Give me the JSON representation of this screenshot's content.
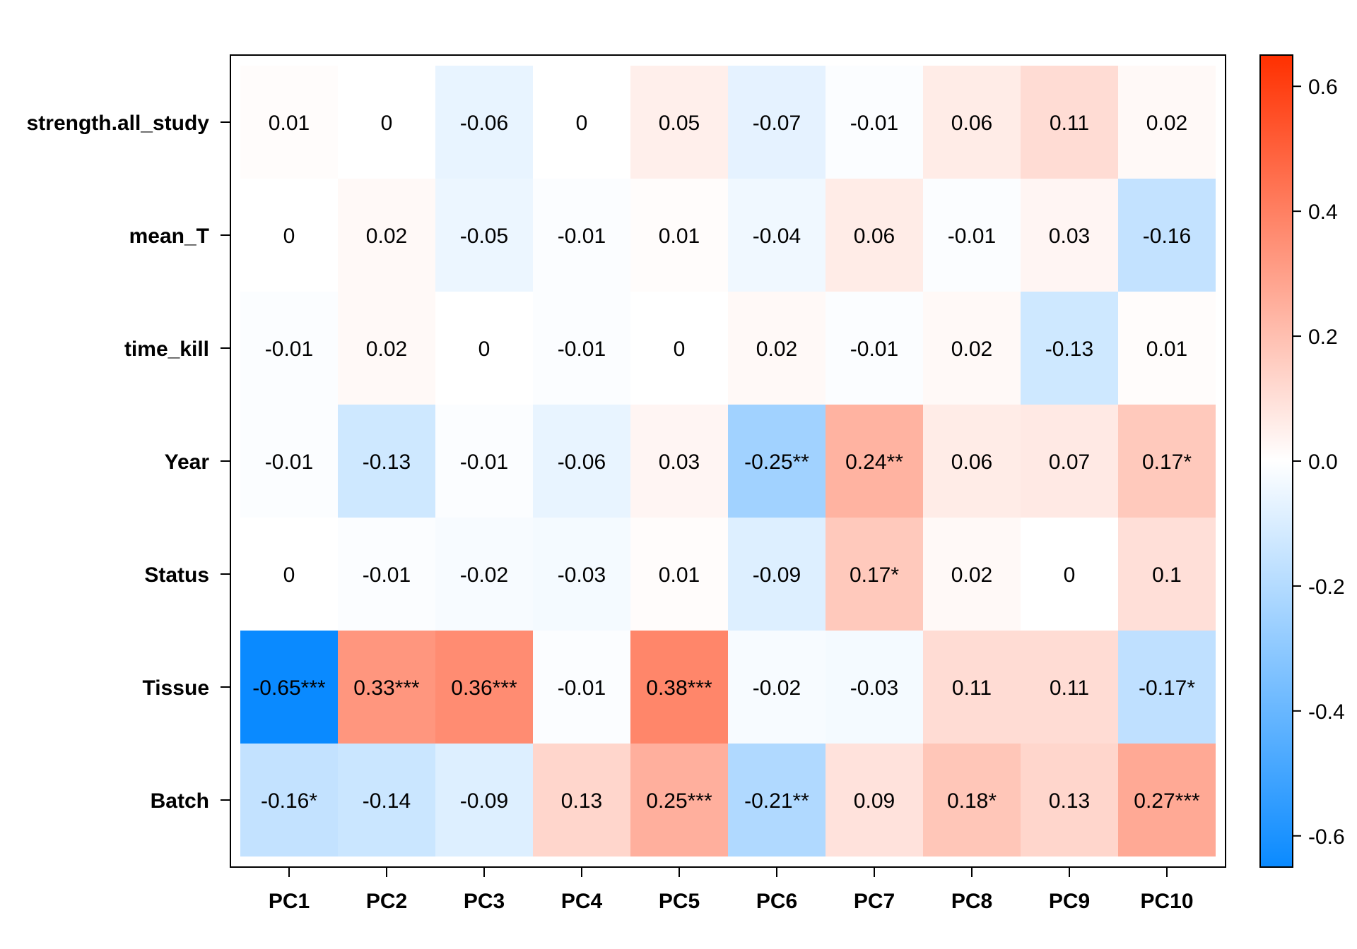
{
  "chart_data": {
    "type": "heatmap",
    "rows": [
      "strength.all_study",
      "mean_T",
      "time_kill",
      "Year",
      "Status",
      "Tissue",
      "Batch"
    ],
    "columns": [
      "PC1",
      "PC2",
      "PC3",
      "PC4",
      "PC5",
      "PC6",
      "PC7",
      "PC8",
      "PC9",
      "PC10"
    ],
    "values": [
      [
        0.01,
        0,
        -0.06,
        0,
        0.05,
        -0.07,
        -0.01,
        0.06,
        0.11,
        0.02
      ],
      [
        0,
        0.02,
        -0.05,
        -0.01,
        0.01,
        -0.04,
        0.06,
        -0.01,
        0.03,
        -0.16
      ],
      [
        -0.01,
        0.02,
        0,
        -0.01,
        0,
        0.02,
        -0.01,
        0.02,
        -0.13,
        0.01
      ],
      [
        -0.01,
        -0.13,
        -0.01,
        -0.06,
        0.03,
        -0.25,
        0.24,
        0.06,
        0.07,
        0.17
      ],
      [
        0,
        -0.01,
        -0.02,
        -0.03,
        0.01,
        -0.09,
        0.17,
        0.02,
        0,
        0.1
      ],
      [
        -0.65,
        0.33,
        0.36,
        -0.01,
        0.38,
        -0.02,
        -0.03,
        0.11,
        0.11,
        -0.17
      ],
      [
        -0.16,
        -0.14,
        -0.09,
        0.13,
        0.25,
        -0.21,
        0.09,
        0.18,
        0.13,
        0.27
      ]
    ],
    "labels": [
      [
        "0.01",
        "0",
        "-0.06",
        "0",
        "0.05",
        "-0.07",
        "-0.01",
        "0.06",
        "0.11",
        "0.02"
      ],
      [
        "0",
        "0.02",
        "-0.05",
        "-0.01",
        "0.01",
        "-0.04",
        "0.06",
        "-0.01",
        "0.03",
        "-0.16"
      ],
      [
        "-0.01",
        "0.02",
        "0",
        "-0.01",
        "0",
        "0.02",
        "-0.01",
        "0.02",
        "-0.13",
        "0.01"
      ],
      [
        "-0.01",
        "-0.13",
        "-0.01",
        "-0.06",
        "0.03",
        "-0.25**",
        "0.24**",
        "0.06",
        "0.07",
        "0.17*"
      ],
      [
        "0",
        "-0.01",
        "-0.02",
        "-0.03",
        "0.01",
        "-0.09",
        "0.17*",
        "0.02",
        "0",
        "0.1"
      ],
      [
        "-0.65***",
        "0.33***",
        "0.36***",
        "-0.01",
        "0.38***",
        "-0.02",
        "-0.03",
        "0.11",
        "0.11",
        "-0.17*"
      ],
      [
        "-0.16*",
        "-0.14",
        "-0.09",
        "0.13",
        "0.25***",
        "-0.21**",
        "0.09",
        "0.18*",
        "0.13",
        "0.27***"
      ]
    ],
    "color_scale": {
      "min": -0.65,
      "max": 0.65,
      "low_color": "#0A8AFF",
      "mid_color": "#FFFFFF",
      "high_color": "#FF3000",
      "ticks": [
        "-0.6",
        "-0.4",
        "-0.2",
        "0.0",
        "0.2",
        "0.4",
        "0.6"
      ]
    },
    "legend": "right"
  }
}
